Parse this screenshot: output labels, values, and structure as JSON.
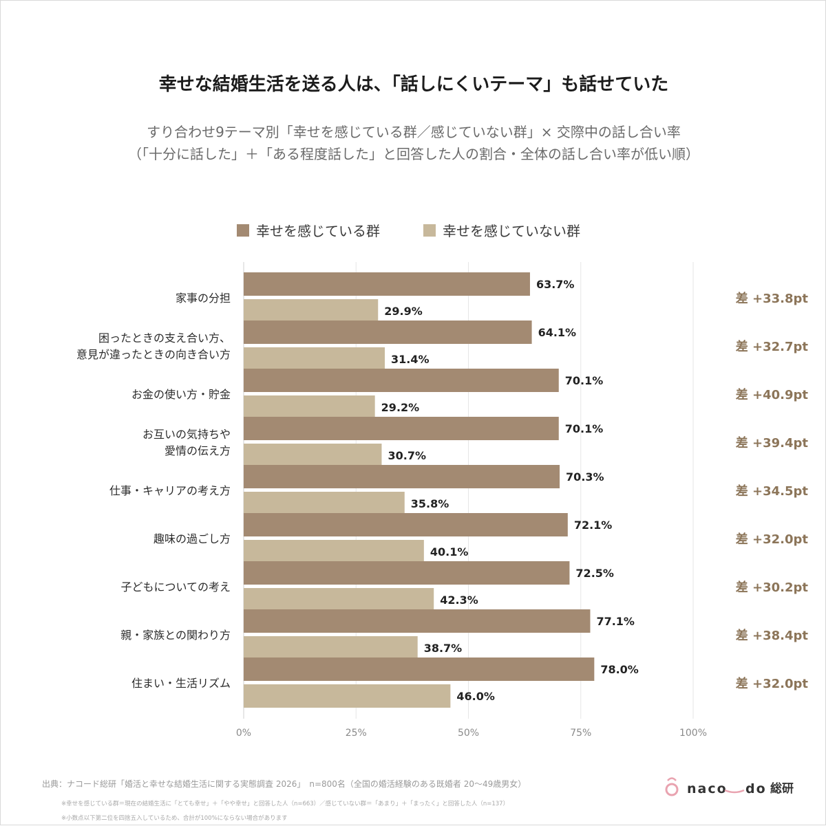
{
  "chart_data": {
    "type": "bar",
    "orientation": "horizontal",
    "title": "幸せな結婚生活を送る人は、「話しにくいテーマ」も話せていた",
    "subtitle_lines": [
      "すり合わせ9テーマ別「幸せを感じている群／感じていない群」× 交際中の話し合い率",
      "（「十分に話した」＋「ある程度話した」と回答した人の割合・全体の話し合い率が低い順）"
    ],
    "categories": [
      [
        "家事の分担"
      ],
      [
        "困ったときの支え合い方、",
        "意見が違ったときの向き合い方"
      ],
      [
        "お金の使い方・貯金"
      ],
      [
        "お互いの気持ちや",
        "愛情の伝え方"
      ],
      [
        "仕事・キャリアの考え方"
      ],
      [
        "趣味の過ごし方"
      ],
      [
        "子どもについての考え"
      ],
      [
        "親・家族との関わり方"
      ],
      [
        "住まい・生活リズム"
      ]
    ],
    "series": [
      {
        "name": "幸せを感じている群",
        "color": "#a38a72",
        "values": [
          63.7,
          64.1,
          70.1,
          70.1,
          70.3,
          72.1,
          72.5,
          77.1,
          78.0
        ],
        "labels": [
          "63.7%",
          "64.1%",
          "70.1%",
          "70.1%",
          "70.3%",
          "72.1%",
          "72.5%",
          "77.1%",
          "78.0%"
        ]
      },
      {
        "name": "幸せを感じていない群",
        "color": "#c7b89b",
        "values": [
          29.9,
          31.4,
          29.2,
          30.7,
          35.8,
          40.1,
          42.3,
          38.7,
          46.0
        ],
        "labels": [
          "29.9%",
          "31.4%",
          "29.2%",
          "30.7%",
          "35.8%",
          "40.1%",
          "42.3%",
          "38.7%",
          "46.0%"
        ]
      }
    ],
    "differences": [
      "差 +33.8pt",
      "差 +32.7pt",
      "差 +40.9pt",
      "差 +39.4pt",
      "差 +34.5pt",
      "差 +32.0pt",
      "差 +30.2pt",
      "差 +38.4pt",
      "差 +32.0pt"
    ],
    "x_ticks": [
      0,
      25,
      50,
      75,
      100
    ],
    "x_tick_labels": [
      "0%",
      "25%",
      "50%",
      "75%",
      "100%"
    ],
    "xlim": [
      0,
      100
    ],
    "grid": true,
    "legend_position": "top-center"
  },
  "footer": {
    "source": "出典：ナコード総研「婚活と幸せな結婚生活に関する実態調査 2026」　n=800名（全国の婚活経験のある既婚者 20〜49歳男女）",
    "note1": "※幸せを感じている群＝現在の結婚生活に「とても幸せ」＋「やや幸せ」と回答した人（n=663）／感じていない群＝「あまり」＋「まったく」と回答した人（n=137）",
    "note2": "※小数点以下第二位を四捨五入しているため、合計が100%にならない場合があります",
    "brand": "naco",
    "brand_tail": "do",
    "brand_kanji": "総研",
    "brand_accent": "#e9a3b0"
  }
}
